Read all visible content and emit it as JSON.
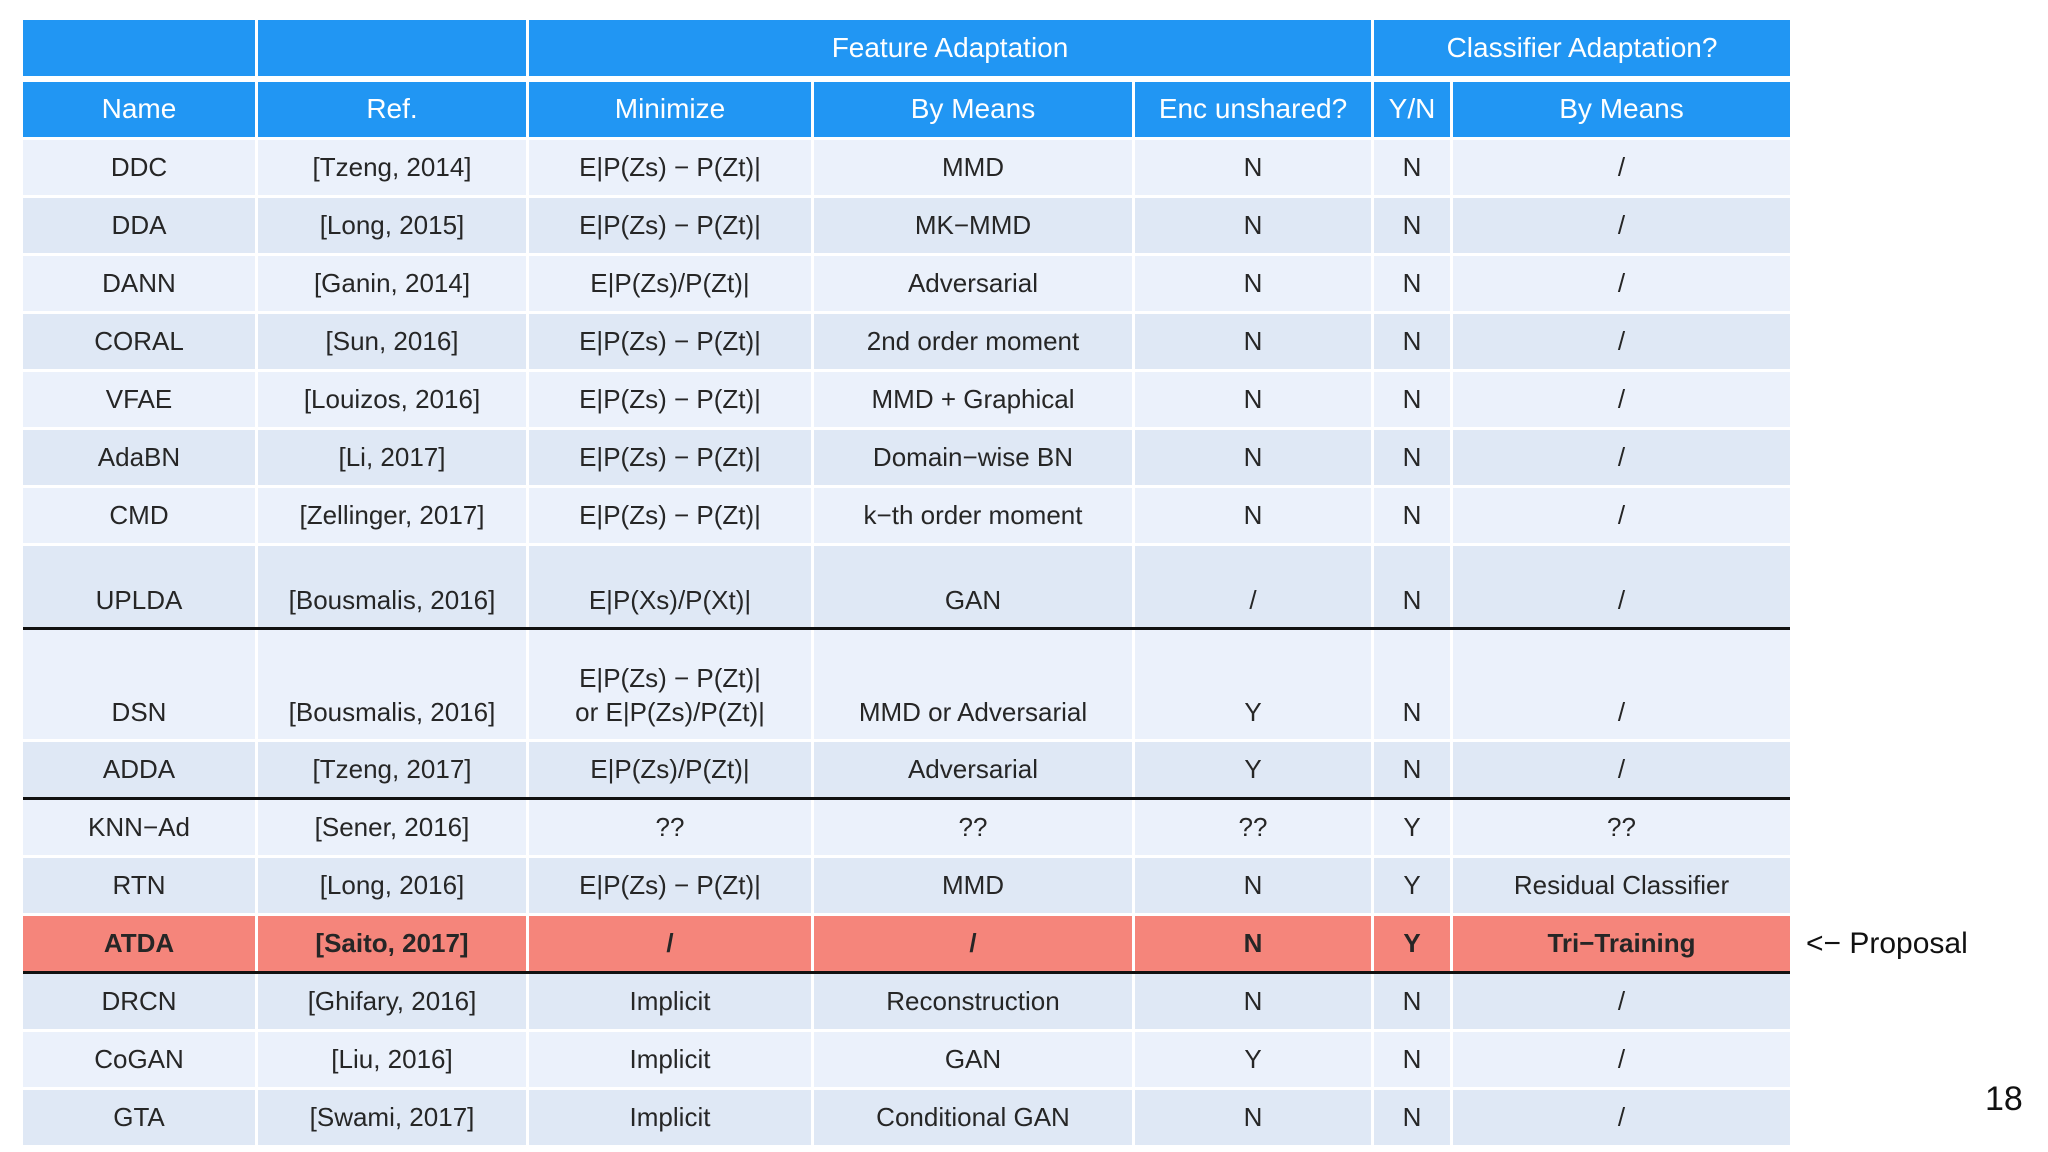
{
  "colors": {
    "header_blue": "#2196F3",
    "header_text": "#FFFFFF",
    "row_light": "#EBF1FB",
    "row_dark": "#DFE8F5",
    "highlight_row": "#F5857B",
    "separator_black": "#111111",
    "body_text": "#262626"
  },
  "table": {
    "header_groups": [
      {
        "label": "",
        "span": 1
      },
      {
        "label": "",
        "span": 1
      },
      {
        "label": "Feature Adaptation",
        "span": 3
      },
      {
        "label": "Classifier Adaptation?",
        "span": 2
      }
    ],
    "columns": [
      "Name",
      "Ref.",
      "Minimize",
      "By Means",
      "Enc unshared?",
      "Y/N",
      "By Means"
    ],
    "rows": [
      {
        "cells": [
          "DDC",
          "[Tzeng, 2014]",
          "E|P(Zs) − P(Zt)|",
          "MMD",
          "N",
          "N",
          "/"
        ]
      },
      {
        "cells": [
          "DDA",
          "[Long, 2015]",
          "E|P(Zs) − P(Zt)|",
          "MK−MMD",
          "N",
          "N",
          "/"
        ]
      },
      {
        "cells": [
          "DANN",
          "[Ganin, 2014]",
          "E|P(Zs)/P(Zt)|",
          "Adversarial",
          "N",
          "N",
          "/"
        ]
      },
      {
        "cells": [
          "CORAL",
          "[Sun, 2016]",
          "E|P(Zs) − P(Zt)|",
          "2nd order moment",
          "N",
          "N",
          "/"
        ]
      },
      {
        "cells": [
          "VFAE",
          "[Louizos, 2016]",
          "E|P(Zs) − P(Zt)|",
          "MMD + Graphical",
          "N",
          "N",
          "/"
        ]
      },
      {
        "cells": [
          "AdaBN",
          "[Li, 2017]",
          "E|P(Zs) − P(Zt)|",
          "Domain−wise BN",
          "N",
          "N",
          "/"
        ]
      },
      {
        "cells": [
          "CMD",
          "[Zellinger, 2017]",
          "E|P(Zs) − P(Zt)|",
          "k−th order moment",
          "N",
          "N",
          "/"
        ]
      },
      {
        "cells": [
          "UPLDA",
          "[Bousmalis, 2016]",
          "E|P(Xs)/P(Xt)|",
          "GAN",
          "/",
          "N",
          "/"
        ],
        "tall": true,
        "bottom": true,
        "separator_after": true
      },
      {
        "cells": [
          "DSN",
          "[Bousmalis, 2016]",
          "E|P(Zs) − P(Zt)|\nor E|P(Zs)/P(Zt)|",
          "MMD or Adversarial",
          "Y",
          "N",
          "/"
        ],
        "taller": true,
        "bottom": true
      },
      {
        "cells": [
          "ADDA",
          "[Tzeng, 2017]",
          "E|P(Zs)/P(Zt)|",
          "Adversarial",
          "Y",
          "N",
          "/"
        ],
        "separator_after": true
      },
      {
        "cells": [
          "KNN−Ad",
          "[Sener, 2016]",
          "??",
          "??",
          "??",
          "Y",
          "??"
        ]
      },
      {
        "cells": [
          "RTN",
          "[Long, 2016]",
          "E|P(Zs) − P(Zt)|",
          "MMD",
          "N",
          "Y",
          "Residual Classifier"
        ]
      },
      {
        "cells": [
          "ATDA",
          "[Saito, 2017]",
          "/",
          "/",
          "N",
          "Y",
          "Tri−Training"
        ],
        "highlight": true,
        "bold": true,
        "separator_after": true
      },
      {
        "cells": [
          "DRCN",
          "[Ghifary, 2016]",
          "Implicit",
          "Reconstruction",
          "N",
          "N",
          "/"
        ]
      },
      {
        "cells": [
          "CoGAN",
          "[Liu, 2016]",
          "Implicit",
          "GAN",
          "Y",
          "N",
          "/"
        ]
      },
      {
        "cells": [
          "GTA",
          "[Swami, 2017]",
          "Implicit",
          "Conditional GAN",
          "N",
          "N",
          "/"
        ]
      }
    ]
  },
  "annotation": {
    "text": "<− Proposal"
  },
  "page_number": "18"
}
